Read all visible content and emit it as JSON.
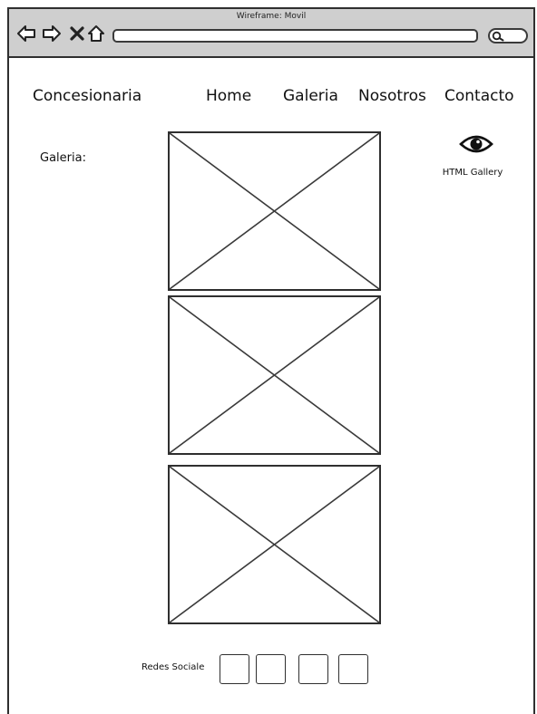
{
  "window": {
    "title": "Wireframe: Movil"
  },
  "browser": {
    "back_icon": "back-arrow-icon",
    "forward_icon": "forward-arrow-icon",
    "close_icon": "close-icon",
    "home_icon": "home-icon",
    "search_icon": "search-icon"
  },
  "header": {
    "brand": "Concesionaria",
    "nav": [
      "Home",
      "Galeria",
      "Nosotros",
      "Contacto"
    ]
  },
  "main": {
    "section_label": "Galeria:",
    "images": [
      "image-placeholder",
      "image-placeholder",
      "image-placeholder"
    ],
    "gallery_link": {
      "icon": "eye-icon",
      "label": "HTML Gallery"
    }
  },
  "footer": {
    "social_label": "Redes Sociale",
    "social_buttons": 4
  },
  "colors": {
    "titlebar": "#cfcfcf",
    "stroke": "#2f2f2f",
    "background": "#ffffff"
  }
}
